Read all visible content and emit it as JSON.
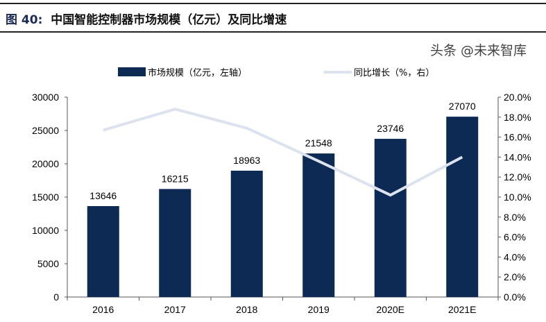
{
  "figure": {
    "label": "图 40:",
    "title": "中国智能控制器市场规模（亿元）及同比增速"
  },
  "watermark": "头条 @未来智库",
  "chart_data": {
    "type": "bar+line",
    "categories": [
      "2016",
      "2017",
      "2018",
      "2019",
      "2020E",
      "2021E"
    ],
    "series": [
      {
        "name": "市场规模（亿元，左轴）",
        "type": "bar",
        "axis": "left",
        "color": "#0d2a55",
        "values": [
          13646,
          16215,
          18963,
          21548,
          23746,
          27070
        ]
      },
      {
        "name": "同比增长（%，右）",
        "type": "line",
        "axis": "right",
        "color": "#dce3ef",
        "values": [
          16.7,
          18.8,
          16.9,
          13.6,
          10.2,
          14.0
        ]
      }
    ],
    "data_labels": [
      "13646",
      "16215",
      "18963",
      "21548",
      "23746",
      "27070"
    ],
    "left_axis": {
      "min": 0,
      "max": 30000,
      "ticks": [
        "0",
        "5000",
        "10000",
        "15000",
        "20000",
        "25000",
        "30000"
      ]
    },
    "right_axis": {
      "min": 0,
      "max": 20,
      "ticks": [
        "0.0%",
        "2.0%",
        "4.0%",
        "6.0%",
        "8.0%",
        "10.0%",
        "12.0%",
        "14.0%",
        "16.0%",
        "18.0%",
        "20.0%"
      ]
    },
    "grid": false,
    "legend_position": "top"
  }
}
